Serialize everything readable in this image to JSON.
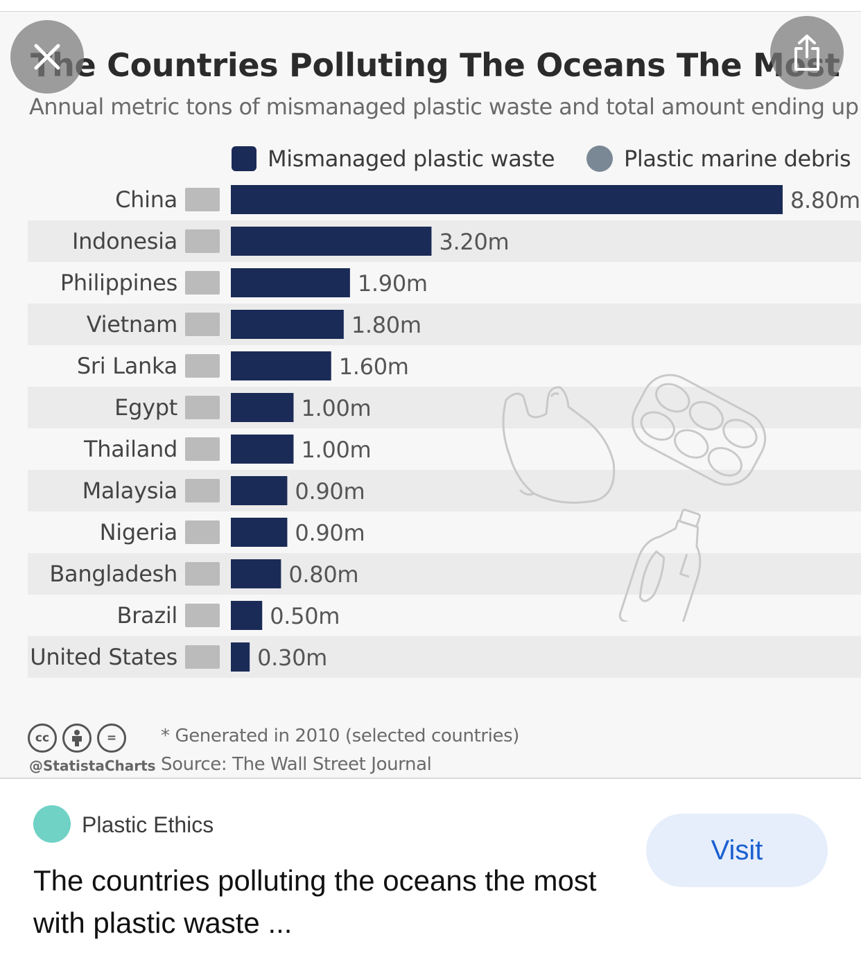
{
  "header": {
    "title": "The Countries Polluting The Oceans The Most",
    "subtitle": "Annual metric tons of mismanaged plastic waste and total amount ending up"
  },
  "legend": {
    "mismanaged": "Mismanaged plastic waste",
    "debris": "Plastic marine debris"
  },
  "chart_data": {
    "type": "bar",
    "orientation": "horizontal",
    "title": "The Countries Polluting The Oceans The Most",
    "subtitle": "Annual metric tons of mismanaged plastic waste and total amount ending up",
    "categories": [
      "China",
      "Indonesia",
      "Philippines",
      "Vietnam",
      "Sri Lanka",
      "Egypt",
      "Thailand",
      "Malaysia",
      "Nigeria",
      "Bangladesh",
      "Brazil",
      "United States"
    ],
    "series": [
      {
        "name": "Mismanaged plastic waste",
        "values": [
          8.8,
          3.2,
          1.9,
          1.8,
          1.6,
          1.0,
          1.0,
          0.9,
          0.9,
          0.8,
          0.5,
          0.3
        ],
        "labels": [
          "8.80m",
          "3.20m",
          "1.90m",
          "1.80m",
          "1.60m",
          "1.00m",
          "1.00m",
          "0.90m",
          "0.90m",
          "0.80m",
          "0.50m",
          "0.30m"
        ],
        "color": "#1b2b57"
      }
    ],
    "xlim": [
      0,
      8.8
    ],
    "grid": false,
    "legend_position": "top"
  },
  "colors": {
    "bar": "#1b2b57",
    "debris": "#7a8896",
    "row_band": "#ebebeb",
    "accent_link": "#1a5fd0",
    "site_dot": "#6fd2c5"
  },
  "footer": {
    "note": "* Generated in 2010 (selected countries)",
    "source": "Source: The Wall Street Journal",
    "handle": "@StatistaCharts",
    "cc_glyph": "cc",
    "nd_glyph": "="
  },
  "result": {
    "site": "Plastic Ethics",
    "title": "The countries polluting the oceans the most with plastic waste ...",
    "visit_label": "Visit"
  },
  "icons": {
    "close": "close-icon",
    "share": "share-icon"
  }
}
